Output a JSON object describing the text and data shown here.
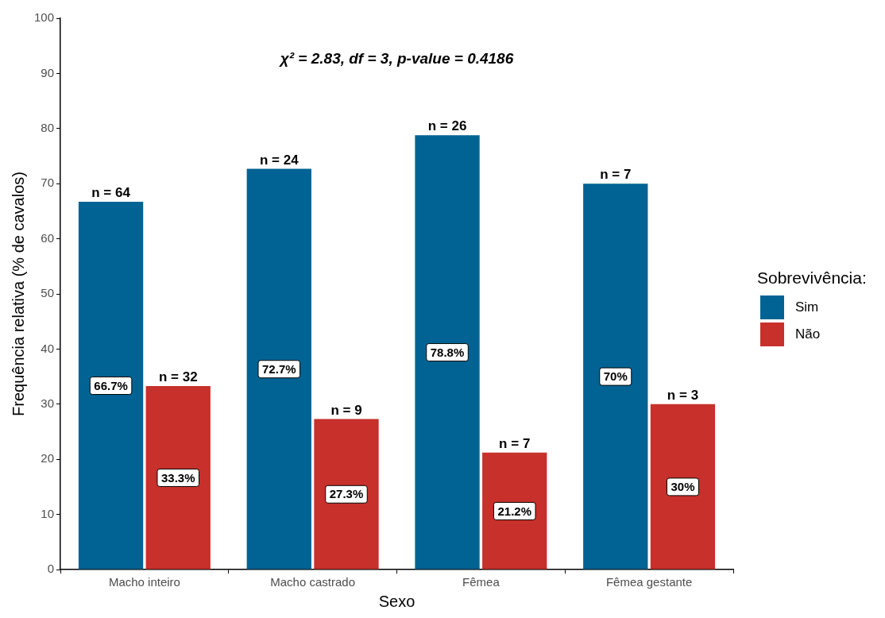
{
  "chart_data": {
    "type": "bar",
    "xlabel": "Sexo",
    "ylabel": "Frequência relativa (% de cavalos)",
    "legend_title": "Sobrevivência:",
    "legend": "right",
    "categories": [
      "Macho inteiro",
      "Macho castrado",
      "Fêmea",
      "Fêmea gestante"
    ],
    "series": [
      {
        "name": "Sim",
        "color": "#006393",
        "values": [
          66.7,
          72.7,
          78.8,
          70
        ],
        "value_labels": [
          "66.7%",
          "72.7%",
          "78.8%",
          "70%"
        ]
      },
      {
        "name": "Não",
        "color": "#c8302b",
        "values": [
          33.3,
          27.3,
          21.2,
          30
        ],
        "value_labels": [
          "33.3%",
          "27.3%",
          "21.2%",
          "30%"
        ]
      }
    ],
    "ylim": [
      0,
      100
    ],
    "yticks": [
      0,
      10,
      20,
      30,
      40,
      50,
      60,
      70,
      80,
      90,
      100
    ],
    "annotations": [
      "χ² = 2.83, df = 3, p-value = 0.4186",
      {
        "text": "n = 64",
        "x": "Macho inteiro",
        "y": 66.7
      },
      {
        "text": "n = 32",
        "x": "Macho inteiro",
        "y": 33.3
      },
      {
        "text": "n = 24",
        "x": "Macho castrado",
        "y": 72.7
      },
      {
        "text": "n = 9",
        "x": "Macho castrado",
        "y": 27.3
      },
      {
        "text": "n = 26",
        "x": "Fêmea",
        "y": 78.8
      },
      {
        "text": "n = 7",
        "x": "Fêmea",
        "y": 21.2
      },
      {
        "text": "n = 7",
        "x": "Fêmea gestante",
        "y": 70
      },
      {
        "text": "n = 3",
        "x": "Fêmea gestante",
        "y": 30
      }
    ]
  }
}
